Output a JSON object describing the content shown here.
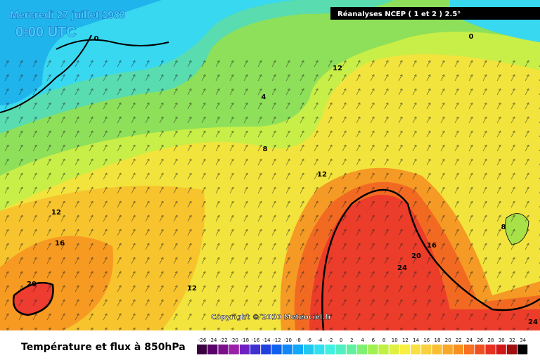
{
  "header": {
    "date": "Mercredi 27 juillet 1983",
    "time": "0:00 UTC",
    "source": "Réanalyses NCEP ( 1 et 2 ) 2.5°"
  },
  "copyright": "Copyright © 2010 Meteociel.fr",
  "footer": {
    "title": "Température et flux à 850hPa"
  },
  "scale": {
    "labels": [
      -26,
      -24,
      -22,
      -20,
      -18,
      -16,
      -14,
      -12,
      -10,
      -8,
      -6,
      -4,
      -2,
      0,
      2,
      4,
      6,
      8,
      10,
      12,
      14,
      16,
      18,
      20,
      22,
      24,
      26,
      28,
      30,
      32,
      34
    ],
    "colors": [
      "#3a0040",
      "#5a006a",
      "#7a108a",
      "#9a20aa",
      "#7020c0",
      "#4030d0",
      "#2040e0",
      "#1060f0",
      "#1088f8",
      "#10a8f8",
      "#20c8f0",
      "#30e0f0",
      "#40f0e0",
      "#50f0c0",
      "#60f0a0",
      "#80f070",
      "#a0f050",
      "#c0f040",
      "#e0f040",
      "#f8f040",
      "#f8e040",
      "#f8d040",
      "#f8c030",
      "#f8a828",
      "#f89020",
      "#f87020",
      "#f05020",
      "#e83020",
      "#d01818",
      "#a01010",
      "#000000"
    ]
  },
  "contour_labels": [
    0,
    0,
    12,
    4,
    8,
    12,
    12,
    16,
    20,
    12,
    16,
    20,
    24,
    8,
    24
  ]
}
